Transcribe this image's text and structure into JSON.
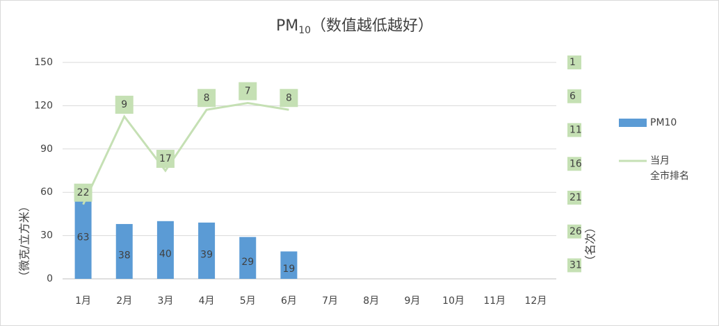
{
  "chart_data": {
    "type": "bar_line",
    "title": {
      "main": "PM",
      "subscript": "10",
      "rest": "（数值越低越好）"
    },
    "y_label": "（微克/立方米）",
    "y2_label": "（名次）",
    "categories": [
      "1月",
      "2月",
      "3月",
      "4月",
      "5月",
      "6月",
      "7月",
      "8月",
      "9月",
      "10月",
      "11月",
      "12月"
    ],
    "series": [
      {
        "name": "PM10",
        "type": "bar",
        "color": "#5b9bd5",
        "values": [
          63,
          38,
          40,
          39,
          29,
          19,
          null,
          null,
          null,
          null,
          null,
          null
        ]
      },
      {
        "name": "当月\n全市排名",
        "type": "line",
        "axis": "y2",
        "color": "#c5e0b4",
        "values": [
          22,
          9,
          17,
          8,
          7,
          8,
          null,
          null,
          null,
          null,
          null,
          null
        ]
      }
    ],
    "ylim": [
      0,
      150
    ],
    "yticks": [
      0,
      30,
      60,
      90,
      120,
      150
    ],
    "y2lim": [
      33,
      1
    ],
    "y2ticks": [
      1,
      6,
      11,
      16,
      21,
      26,
      31
    ],
    "grid": true,
    "legend": "right"
  }
}
